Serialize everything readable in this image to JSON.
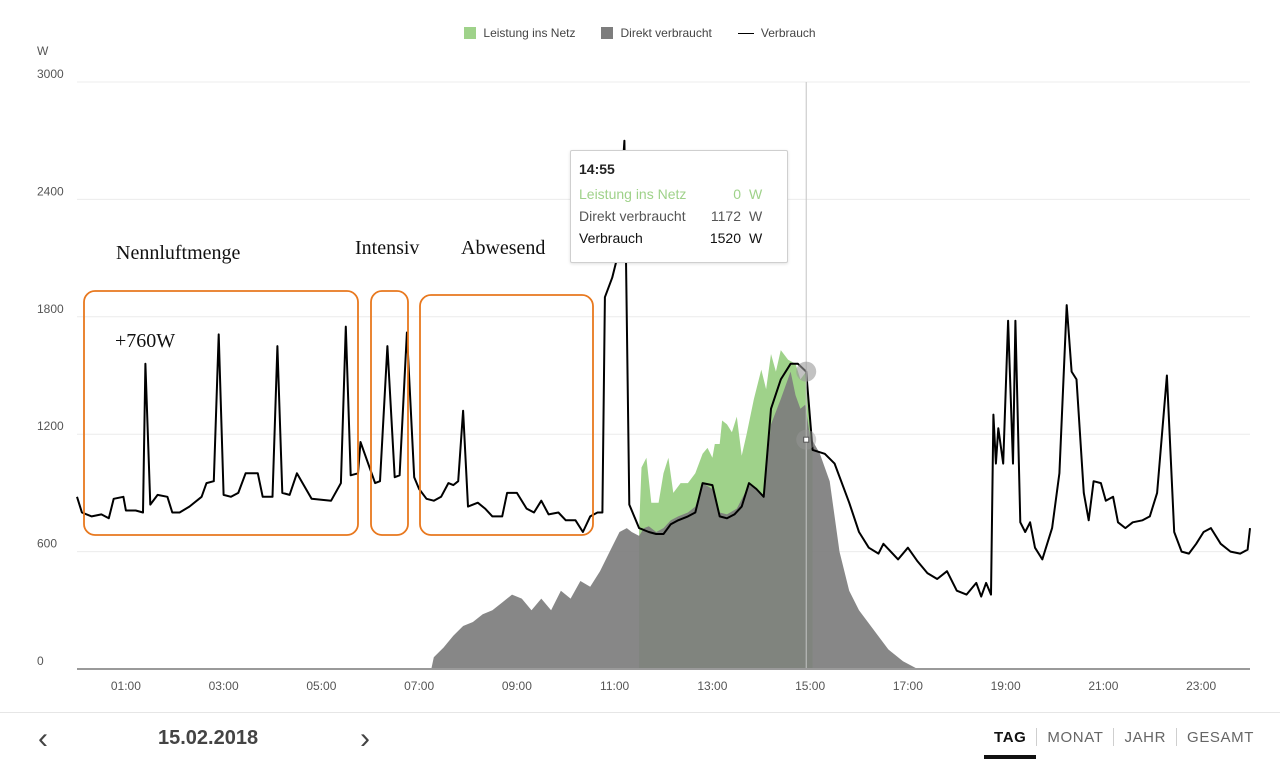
{
  "legend": {
    "netz": "Leistung ins Netz",
    "direkt": "Direkt verbraucht",
    "verbrauch": "Verbrauch"
  },
  "annotations": {
    "nennluftmenge": "Nennluftmenge",
    "intensiv": "Intensiv",
    "abwesend": "Abwesend",
    "plus760": "+760W",
    "box_color": "#e8781e"
  },
  "tooltip": {
    "time": "14:55",
    "rows": [
      {
        "label": "Leistung ins Netz",
        "value": "0",
        "unit": "W"
      },
      {
        "label": "Direkt verbraucht",
        "value": "1172",
        "unit": "W"
      },
      {
        "label": "Verbrauch",
        "value": "1520",
        "unit": "W"
      }
    ]
  },
  "nav": {
    "date": "15.02.2018",
    "prev_icon": "chevron-left-icon",
    "next_icon": "chevron-right-icon",
    "tabs": [
      "TAG",
      "MONAT",
      "JAHR",
      "GESAMT"
    ],
    "active_tab": "TAG"
  },
  "colors": {
    "netz": "#9fd28a",
    "direkt": "#7d7d7d",
    "verbrauch": "#000000",
    "grid": "#ececec"
  },
  "chart_data": {
    "type": "area",
    "unit_label": "W",
    "ylim": [
      0,
      3000
    ],
    "y_ticks": [
      0,
      600,
      1200,
      1800,
      2400,
      3000
    ],
    "xlim": [
      0,
      24
    ],
    "x_ticks": [
      "01:00",
      "03:00",
      "05:00",
      "07:00",
      "09:00",
      "11:00",
      "13:00",
      "15:00",
      "17:00",
      "19:00",
      "21:00",
      "23:00"
    ],
    "x_tick_hours": [
      1,
      3,
      5,
      7,
      9,
      11,
      13,
      15,
      17,
      19,
      21,
      23
    ],
    "grid": true,
    "legend_position": "top-center",
    "cursor_hour": 14.92,
    "series": [
      {
        "name": "Verbrauch",
        "style": "line",
        "points": [
          [
            0,
            880
          ],
          [
            0.1,
            800
          ],
          [
            0.3,
            780
          ],
          [
            0.5,
            790
          ],
          [
            0.65,
            770
          ],
          [
            0.75,
            870
          ],
          [
            0.95,
            880
          ],
          [
            1.0,
            810
          ],
          [
            1.2,
            810
          ],
          [
            1.35,
            800
          ],
          [
            1.4,
            1560
          ],
          [
            1.5,
            840
          ],
          [
            1.65,
            890
          ],
          [
            1.85,
            880
          ],
          [
            1.95,
            800
          ],
          [
            2.1,
            800
          ],
          [
            2.3,
            830
          ],
          [
            2.55,
            880
          ],
          [
            2.65,
            950
          ],
          [
            2.8,
            960
          ],
          [
            2.9,
            1710
          ],
          [
            3.0,
            890
          ],
          [
            3.15,
            880
          ],
          [
            3.3,
            900
          ],
          [
            3.45,
            1000
          ],
          [
            3.7,
            1000
          ],
          [
            3.8,
            880
          ],
          [
            4.0,
            880
          ],
          [
            4.1,
            1650
          ],
          [
            4.2,
            900
          ],
          [
            4.35,
            890
          ],
          [
            4.5,
            1000
          ],
          [
            4.8,
            870
          ],
          [
            5.2,
            860
          ],
          [
            5.4,
            950
          ],
          [
            5.5,
            1750
          ],
          [
            5.6,
            990
          ],
          [
            5.75,
            1000
          ],
          [
            5.8,
            1160
          ],
          [
            6.1,
            950
          ],
          [
            6.2,
            960
          ],
          [
            6.35,
            1650
          ],
          [
            6.5,
            980
          ],
          [
            6.6,
            990
          ],
          [
            6.75,
            1720
          ],
          [
            6.9,
            980
          ],
          [
            7.0,
            920
          ],
          [
            7.15,
            870
          ],
          [
            7.3,
            860
          ],
          [
            7.45,
            880
          ],
          [
            7.6,
            950
          ],
          [
            7.7,
            940
          ],
          [
            7.8,
            960
          ],
          [
            7.9,
            1320
          ],
          [
            8.0,
            830
          ],
          [
            8.2,
            850
          ],
          [
            8.35,
            820
          ],
          [
            8.5,
            780
          ],
          [
            8.7,
            780
          ],
          [
            8.8,
            900
          ],
          [
            9.0,
            900
          ],
          [
            9.2,
            820
          ],
          [
            9.35,
            800
          ],
          [
            9.5,
            860
          ],
          [
            9.65,
            790
          ],
          [
            9.85,
            800
          ],
          [
            10.0,
            760
          ],
          [
            10.2,
            760
          ],
          [
            10.35,
            700
          ],
          [
            10.5,
            780
          ],
          [
            10.65,
            800
          ],
          [
            10.75,
            800
          ],
          [
            10.8,
            1900
          ],
          [
            10.95,
            2000
          ],
          [
            11.05,
            2100
          ],
          [
            11.2,
            2700
          ],
          [
            11.3,
            840
          ],
          [
            11.5,
            720
          ],
          [
            11.7,
            700
          ],
          [
            11.85,
            690
          ],
          [
            12.0,
            690
          ],
          [
            12.15,
            740
          ],
          [
            12.3,
            760
          ],
          [
            12.5,
            780
          ],
          [
            12.65,
            800
          ],
          [
            12.8,
            950
          ],
          [
            13.0,
            940
          ],
          [
            13.15,
            780
          ],
          [
            13.3,
            770
          ],
          [
            13.45,
            790
          ],
          [
            13.6,
            830
          ],
          [
            13.75,
            950
          ],
          [
            13.9,
            920
          ],
          [
            14.05,
            880
          ],
          [
            14.2,
            1330
          ],
          [
            14.4,
            1480
          ],
          [
            14.6,
            1560
          ],
          [
            14.75,
            1560
          ],
          [
            14.92,
            1520
          ],
          [
            15.05,
            1120
          ],
          [
            15.3,
            1100
          ],
          [
            15.5,
            1050
          ],
          [
            15.8,
            850
          ],
          [
            16.0,
            700
          ],
          [
            16.2,
            620
          ],
          [
            16.4,
            590
          ],
          [
            16.5,
            640
          ],
          [
            16.8,
            560
          ],
          [
            17.0,
            620
          ],
          [
            17.2,
            550
          ],
          [
            17.4,
            490
          ],
          [
            17.6,
            460
          ],
          [
            17.8,
            500
          ],
          [
            18.0,
            400
          ],
          [
            18.2,
            380
          ],
          [
            18.4,
            440
          ],
          [
            18.5,
            370
          ],
          [
            18.6,
            440
          ],
          [
            18.7,
            380
          ],
          [
            18.75,
            1300
          ],
          [
            18.8,
            1050
          ],
          [
            18.85,
            1230
          ],
          [
            18.95,
            1050
          ],
          [
            19.05,
            1780
          ],
          [
            19.15,
            1050
          ],
          [
            19.2,
            1780
          ],
          [
            19.3,
            750
          ],
          [
            19.4,
            700
          ],
          [
            19.5,
            750
          ],
          [
            19.6,
            620
          ],
          [
            19.75,
            560
          ],
          [
            19.95,
            720
          ],
          [
            20.1,
            1000
          ],
          [
            20.25,
            1860
          ],
          [
            20.35,
            1520
          ],
          [
            20.45,
            1480
          ],
          [
            20.6,
            900
          ],
          [
            20.7,
            760
          ],
          [
            20.8,
            960
          ],
          [
            20.95,
            950
          ],
          [
            21.05,
            860
          ],
          [
            21.2,
            880
          ],
          [
            21.3,
            750
          ],
          [
            21.45,
            720
          ],
          [
            21.6,
            750
          ],
          [
            21.8,
            760
          ],
          [
            21.95,
            780
          ],
          [
            22.1,
            900
          ],
          [
            22.3,
            1500
          ],
          [
            22.45,
            700
          ],
          [
            22.6,
            600
          ],
          [
            22.75,
            590
          ],
          [
            22.9,
            640
          ],
          [
            23.05,
            700
          ],
          [
            23.2,
            720
          ],
          [
            23.4,
            640
          ],
          [
            23.6,
            600
          ],
          [
            23.8,
            590
          ],
          [
            23.95,
            610
          ],
          [
            24.0,
            720
          ]
        ]
      },
      {
        "name": "Direkt verbraucht",
        "style": "area",
        "points": [
          [
            7.25,
            0
          ],
          [
            7.3,
            60
          ],
          [
            7.5,
            110
          ],
          [
            7.7,
            170
          ],
          [
            7.9,
            220
          ],
          [
            8.1,
            240
          ],
          [
            8.3,
            280
          ],
          [
            8.5,
            300
          ],
          [
            8.7,
            340
          ],
          [
            8.9,
            380
          ],
          [
            9.1,
            360
          ],
          [
            9.3,
            300
          ],
          [
            9.5,
            360
          ],
          [
            9.7,
            300
          ],
          [
            9.9,
            400
          ],
          [
            10.1,
            360
          ],
          [
            10.3,
            450
          ],
          [
            10.5,
            420
          ],
          [
            10.7,
            500
          ],
          [
            10.9,
            600
          ],
          [
            11.1,
            700
          ],
          [
            11.25,
            720
          ],
          [
            11.35,
            700
          ],
          [
            11.5,
            680
          ],
          [
            11.6,
            720
          ],
          [
            11.7,
            730
          ],
          [
            11.85,
            700
          ],
          [
            12.0,
            720
          ],
          [
            12.15,
            760
          ],
          [
            12.3,
            780
          ],
          [
            12.5,
            800
          ],
          [
            12.65,
            830
          ],
          [
            12.8,
            950
          ],
          [
            13.0,
            920
          ],
          [
            13.15,
            800
          ],
          [
            13.3,
            790
          ],
          [
            13.5,
            820
          ],
          [
            13.75,
            940
          ],
          [
            13.9,
            920
          ],
          [
            14.05,
            880
          ],
          [
            14.2,
            1250
          ],
          [
            14.4,
            1380
          ],
          [
            14.6,
            1520
          ],
          [
            14.7,
            1400
          ],
          [
            14.8,
            1330
          ],
          [
            14.9,
            1350
          ],
          [
            15.0,
            1190
          ],
          [
            15.2,
            1100
          ],
          [
            15.4,
            960
          ],
          [
            15.6,
            600
          ],
          [
            15.8,
            400
          ],
          [
            16.0,
            300
          ],
          [
            16.3,
            200
          ],
          [
            16.6,
            100
          ],
          [
            16.9,
            40
          ],
          [
            17.2,
            0
          ]
        ]
      },
      {
        "name": "Leistung ins Netz",
        "style": "area",
        "points": [
          [
            11.5,
            720
          ],
          [
            11.55,
            1030
          ],
          [
            11.65,
            1080
          ],
          [
            11.75,
            850
          ],
          [
            11.9,
            850
          ],
          [
            12.0,
            1000
          ],
          [
            12.1,
            1080
          ],
          [
            12.2,
            900
          ],
          [
            12.35,
            950
          ],
          [
            12.5,
            950
          ],
          [
            12.65,
            1000
          ],
          [
            12.8,
            1100
          ],
          [
            12.9,
            1130
          ],
          [
            13.0,
            1080
          ],
          [
            13.05,
            1150
          ],
          [
            13.15,
            1150
          ],
          [
            13.2,
            1270
          ],
          [
            13.3,
            1250
          ],
          [
            13.4,
            1210
          ],
          [
            13.5,
            1290
          ],
          [
            13.6,
            1090
          ],
          [
            13.7,
            1200
          ],
          [
            13.85,
            1380
          ],
          [
            14.0,
            1530
          ],
          [
            14.1,
            1430
          ],
          [
            14.2,
            1610
          ],
          [
            14.3,
            1520
          ],
          [
            14.4,
            1630
          ],
          [
            14.55,
            1580
          ],
          [
            14.7,
            1560
          ],
          [
            14.8,
            1480
          ],
          [
            14.92,
            1520
          ],
          [
            15.05,
            1120
          ]
        ]
      }
    ]
  }
}
